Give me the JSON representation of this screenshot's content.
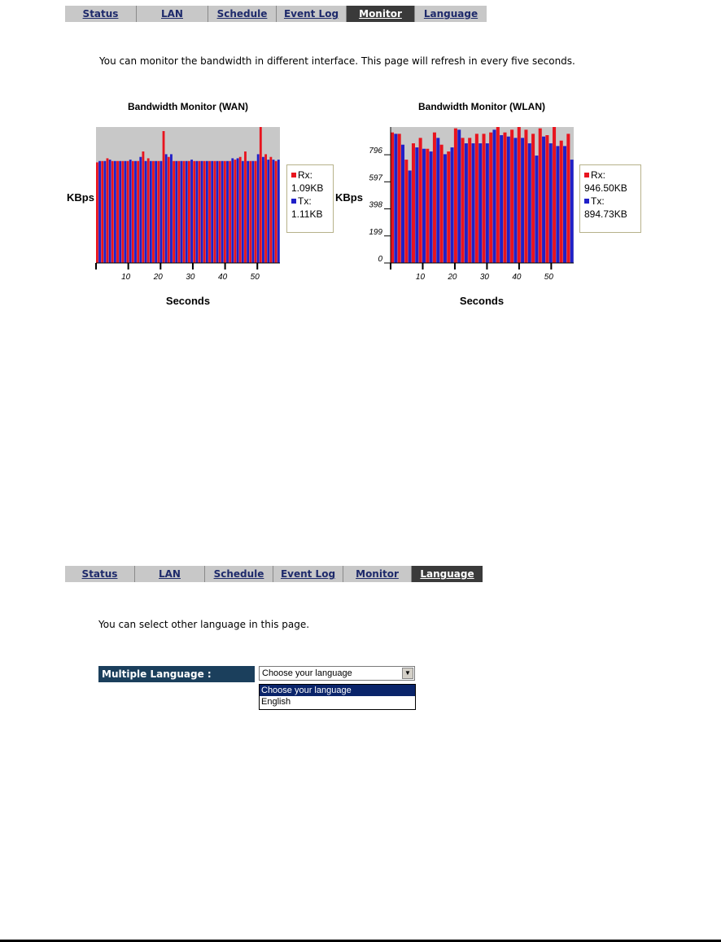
{
  "monitor_section": {
    "nav": {
      "tabs": [
        {
          "label": "Status",
          "active": false
        },
        {
          "label": "LAN",
          "active": false
        },
        {
          "label": "Schedule",
          "active": false
        },
        {
          "label": "Event Log",
          "active": false
        },
        {
          "label": "Monitor",
          "active": true
        },
        {
          "label": "Language",
          "active": false
        }
      ]
    },
    "description": "You can monitor the bandwidth in different interface. This page will refresh in every five seconds."
  },
  "chart_data": [
    {
      "type": "bar",
      "title": "Bandwidth Monitor (WAN)",
      "xlabel": "Seconds",
      "ylabel": "KBps",
      "x_ticks": [
        10,
        20,
        30,
        40,
        50
      ],
      "y_ticks": [],
      "xlim": [
        0,
        57
      ],
      "legend": {
        "placement": "right",
        "rx_label": "Rx:",
        "rx_value": "1.09KB",
        "tx_label": "Tx:",
        "tx_value": "1.11KB"
      },
      "colors": {
        "rx": "#e8141e",
        "tx": "#2020c8",
        "plot_bg": "#c8c8c8"
      },
      "series": [
        {
          "name": "Rx",
          "values": [
            74,
            75,
            77,
            75,
            75,
            75,
            75,
            75,
            75,
            82,
            77,
            75,
            75,
            97,
            78,
            75,
            75,
            75,
            75,
            75,
            75,
            75,
            75,
            75,
            75,
            75,
            75,
            76,
            78,
            82,
            75,
            75,
            100,
            80,
            78,
            75
          ]
        },
        {
          "name": "Tx",
          "values": [
            75,
            75,
            76,
            75,
            75,
            75,
            76,
            75,
            78,
            75,
            75,
            75,
            75,
            80,
            80,
            75,
            75,
            75,
            76,
            75,
            75,
            75,
            75,
            75,
            75,
            75,
            77,
            77,
            75,
            75,
            75,
            80,
            78,
            76,
            76,
            76
          ]
        }
      ]
    },
    {
      "type": "bar",
      "title": "Bandwidth Monitor (WLAN)",
      "xlabel": "Seconds",
      "ylabel": "KBps",
      "x_ticks": [
        10,
        20,
        30,
        40,
        50
      ],
      "y_ticks": [
        0,
        199,
        398,
        597,
        796
      ],
      "xlim": [
        0,
        57
      ],
      "ylim": [
        0,
        1000
      ],
      "legend": {
        "placement": "right",
        "rx_label": "Rx:",
        "rx_value": "946.50KB",
        "tx_label": "Tx:",
        "tx_value": "894.73KB"
      },
      "colors": {
        "rx": "#e8141e",
        "tx": "#2020c8",
        "plot_bg": "#c8c8c8"
      },
      "series": [
        {
          "name": "Rx",
          "values": [
            960,
            950,
            760,
            880,
            920,
            840,
            960,
            870,
            820,
            990,
            920,
            920,
            950,
            950,
            960,
            1000,
            960,
            980,
            1010,
            980,
            950,
            990,
            940,
            1000,
            900,
            950
          ]
        },
        {
          "name": "Tx",
          "values": [
            950,
            870,
            680,
            850,
            840,
            820,
            920,
            800,
            850,
            980,
            880,
            880,
            880,
            880,
            980,
            940,
            930,
            920,
            920,
            880,
            790,
            930,
            880,
            860,
            860,
            760
          ]
        }
      ]
    }
  ],
  "language_section": {
    "nav": {
      "tabs": [
        {
          "label": "Status",
          "active": false
        },
        {
          "label": "LAN",
          "active": false
        },
        {
          "label": "Schedule",
          "active": false
        },
        {
          "label": "Event Log",
          "active": false
        },
        {
          "label": "Monitor",
          "active": false
        },
        {
          "label": "Language",
          "active": true
        }
      ]
    },
    "description": "You can select other language in this page.",
    "field_label": "Multiple Language :",
    "select_value": "Choose your language",
    "options": [
      "Choose your language",
      "English"
    ]
  }
}
